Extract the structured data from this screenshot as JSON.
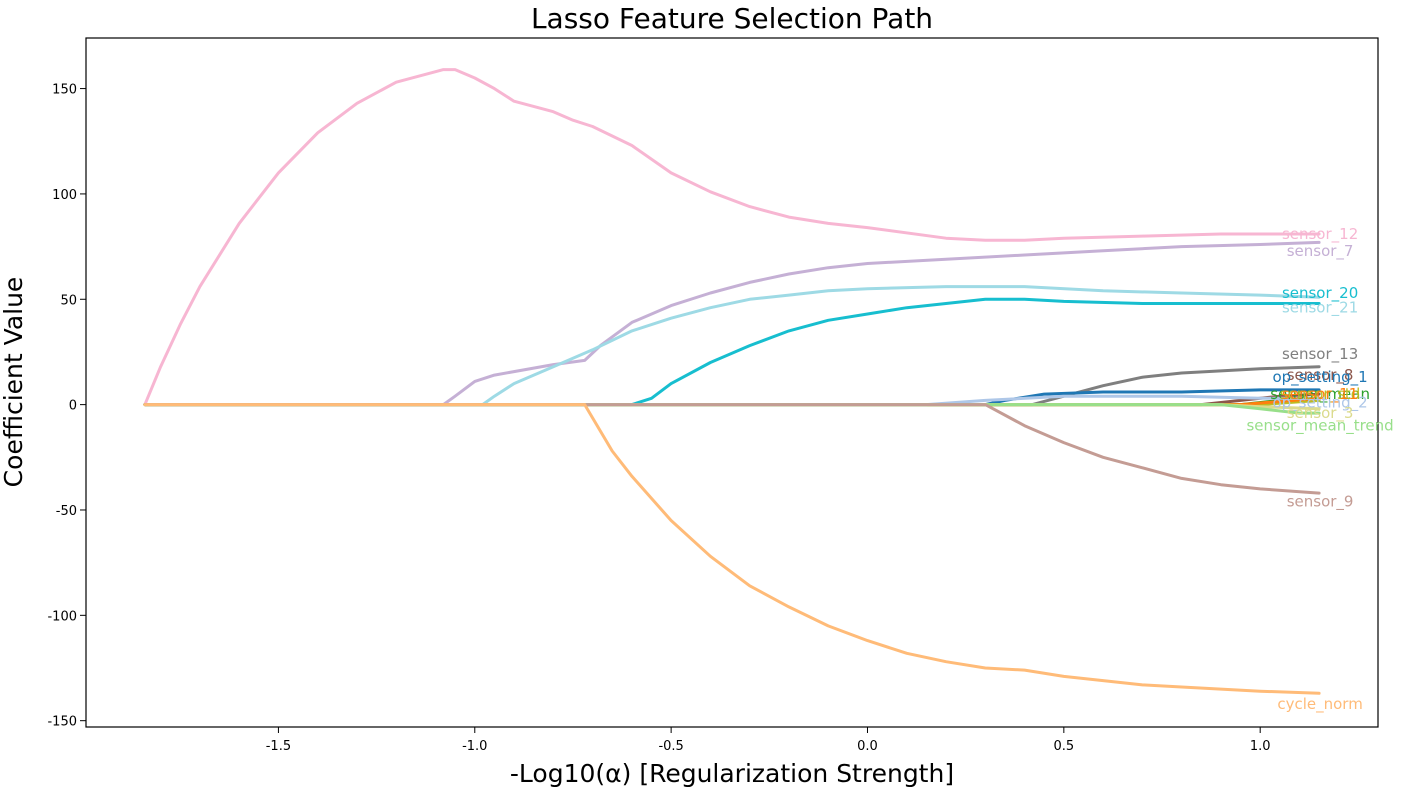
{
  "chart_data": {
    "type": "line",
    "title": "Lasso Feature Selection Path",
    "xlabel": "-Log10(α) [Regularization Strength]",
    "ylabel": "Coefficient Value",
    "xlim": [
      -1.99,
      1.3
    ],
    "ylim": [
      -153,
      174
    ],
    "xticks": [
      -1.5,
      -1.0,
      -0.5,
      0.0,
      0.5,
      1.0
    ],
    "xtick_labels": [
      "-1.5",
      "-1.0",
      "-0.5",
      "0.0",
      "0.5",
      "1.0"
    ],
    "yticks": [
      -150,
      -100,
      -50,
      0,
      50,
      100,
      150
    ],
    "ytick_labels": [
      "-150",
      "-100",
      "-50",
      "0",
      "50",
      "100",
      "150"
    ],
    "grid": false,
    "legend": "none",
    "series": [
      {
        "name": "sensor_12",
        "color": "#f7b6d2",
        "label_at": 81,
        "points": [
          [
            -1.84,
            0
          ],
          [
            -1.8,
            18
          ],
          [
            -1.75,
            38
          ],
          [
            -1.7,
            56
          ],
          [
            -1.6,
            86
          ],
          [
            -1.5,
            110
          ],
          [
            -1.4,
            129
          ],
          [
            -1.3,
            143
          ],
          [
            -1.2,
            153
          ],
          [
            -1.1,
            158
          ],
          [
            -1.08,
            159
          ],
          [
            -1.05,
            159
          ],
          [
            -1.0,
            155
          ],
          [
            -0.95,
            150
          ],
          [
            -0.9,
            144
          ],
          [
            -0.8,
            139
          ],
          [
            -0.75,
            135
          ],
          [
            -0.7,
            132
          ],
          [
            -0.6,
            123
          ],
          [
            -0.5,
            110
          ],
          [
            -0.4,
            101
          ],
          [
            -0.3,
            94
          ],
          [
            -0.2,
            89
          ],
          [
            -0.1,
            86
          ],
          [
            0.0,
            84
          ],
          [
            0.2,
            79
          ],
          [
            0.3,
            78
          ],
          [
            0.4,
            78
          ],
          [
            0.5,
            79
          ],
          [
            0.7,
            80
          ],
          [
            0.9,
            81
          ],
          [
            1.1,
            81
          ],
          [
            1.15,
            81
          ]
        ]
      },
      {
        "name": "sensor_7",
        "color": "#c5b0d5",
        "label_at": 73,
        "points": [
          [
            -1.84,
            0
          ],
          [
            -1.08,
            0
          ],
          [
            -1.05,
            4
          ],
          [
            -1.0,
            11
          ],
          [
            -0.95,
            14
          ],
          [
            -0.8,
            19
          ],
          [
            -0.72,
            21
          ],
          [
            -0.68,
            28
          ],
          [
            -0.6,
            39
          ],
          [
            -0.5,
            47
          ],
          [
            -0.4,
            53
          ],
          [
            -0.3,
            58
          ],
          [
            -0.2,
            62
          ],
          [
            -0.1,
            65
          ],
          [
            0.0,
            67
          ],
          [
            0.2,
            69
          ],
          [
            0.4,
            71
          ],
          [
            0.6,
            73
          ],
          [
            0.8,
            75
          ],
          [
            1.0,
            76
          ],
          [
            1.15,
            77
          ]
        ]
      },
      {
        "name": "sensor_20",
        "color": "#17becf",
        "label_at": 53,
        "points": [
          [
            -1.84,
            0
          ],
          [
            -0.6,
            0
          ],
          [
            -0.55,
            3
          ],
          [
            -0.5,
            10
          ],
          [
            -0.4,
            20
          ],
          [
            -0.3,
            28
          ],
          [
            -0.2,
            35
          ],
          [
            -0.1,
            40
          ],
          [
            0.0,
            43
          ],
          [
            0.1,
            46
          ],
          [
            0.2,
            48
          ],
          [
            0.3,
            50
          ],
          [
            0.4,
            50
          ],
          [
            0.5,
            49
          ],
          [
            0.7,
            48
          ],
          [
            0.9,
            48
          ],
          [
            1.15,
            48
          ]
        ]
      },
      {
        "name": "sensor_21",
        "color": "#9edae5",
        "label_at": 46,
        "points": [
          [
            -1.84,
            0
          ],
          [
            -0.98,
            0
          ],
          [
            -0.95,
            4
          ],
          [
            -0.9,
            10
          ],
          [
            -0.8,
            18
          ],
          [
            -0.7,
            26
          ],
          [
            -0.6,
            35
          ],
          [
            -0.5,
            41
          ],
          [
            -0.4,
            46
          ],
          [
            -0.3,
            50
          ],
          [
            -0.2,
            52
          ],
          [
            -0.1,
            54
          ],
          [
            0.0,
            55
          ],
          [
            0.2,
            56
          ],
          [
            0.3,
            56
          ],
          [
            0.4,
            56
          ],
          [
            0.6,
            54
          ],
          [
            0.8,
            53
          ],
          [
            1.0,
            52
          ],
          [
            1.15,
            51
          ]
        ]
      },
      {
        "name": "sensor_13",
        "color": "#7f7f7f",
        "label_at": 24,
        "points": [
          [
            -1.84,
            0
          ],
          [
            0.42,
            0
          ],
          [
            0.5,
            4
          ],
          [
            0.6,
            9
          ],
          [
            0.7,
            13
          ],
          [
            0.8,
            15
          ],
          [
            1.0,
            17
          ],
          [
            1.15,
            18
          ]
        ]
      },
      {
        "name": "sensor_8",
        "color": "#8c564b",
        "label_at": 14,
        "points": [
          [
            -1.84,
            0
          ],
          [
            0.85,
            0
          ],
          [
            0.95,
            2
          ],
          [
            1.05,
            4
          ],
          [
            1.15,
            5
          ]
        ]
      },
      {
        "name": "op_setting_1",
        "color": "#1f77b4",
        "label_at": 13,
        "points": [
          [
            -1.84,
            0
          ],
          [
            0.3,
            0
          ],
          [
            0.35,
            2
          ],
          [
            0.45,
            5
          ],
          [
            0.6,
            6
          ],
          [
            0.8,
            6
          ],
          [
            1.0,
            7
          ],
          [
            1.15,
            7
          ]
        ]
      },
      {
        "name": "sensor_mean",
        "color": "#2ca02c",
        "label_at": 5,
        "points": [
          [
            -1.84,
            0
          ],
          [
            0.95,
            0
          ],
          [
            1.05,
            2
          ],
          [
            1.15,
            3
          ]
        ]
      },
      {
        "name": "sensor_std",
        "color": "#bcbd22",
        "label_at": 5,
        "points": [
          [
            -1.84,
            0
          ],
          [
            1.0,
            0
          ],
          [
            1.15,
            2
          ]
        ]
      },
      {
        "name": "sensor_11",
        "color": "#ff7f0e",
        "label_at": 5,
        "points": [
          [
            -1.84,
            0
          ],
          [
            0.95,
            0
          ],
          [
            1.15,
            3
          ]
        ]
      },
      {
        "name": "op_setting_2",
        "color": "#aec7e8",
        "label_at": 1,
        "points": [
          [
            -1.84,
            0
          ],
          [
            0.15,
            0
          ],
          [
            0.3,
            2
          ],
          [
            0.5,
            4
          ],
          [
            0.8,
            4
          ],
          [
            1.0,
            3
          ],
          [
            1.15,
            3
          ]
        ]
      },
      {
        "name": "sensor_3",
        "color": "#dbdb8d",
        "label_at": -4,
        "points": [
          [
            -1.84,
            0
          ],
          [
            0.9,
            0
          ],
          [
            1.0,
            -1
          ],
          [
            1.15,
            -2
          ]
        ]
      },
      {
        "name": "sensor_mean_trend",
        "color": "#98df8a",
        "label_at": -10,
        "points": [
          [
            -1.84,
            0
          ],
          [
            0.9,
            0
          ],
          [
            1.0,
            -2
          ],
          [
            1.1,
            -4
          ],
          [
            1.15,
            -4
          ]
        ]
      },
      {
        "name": "sensor_9",
        "color": "#c49c94",
        "label_at": -46,
        "points": [
          [
            -1.84,
            0
          ],
          [
            0.3,
            0
          ],
          [
            0.4,
            -10
          ],
          [
            0.5,
            -18
          ],
          [
            0.6,
            -25
          ],
          [
            0.7,
            -30
          ],
          [
            0.8,
            -35
          ],
          [
            0.9,
            -38
          ],
          [
            1.0,
            -40
          ],
          [
            1.15,
            -42
          ]
        ]
      },
      {
        "name": "cycle_norm",
        "color": "#ffbb78",
        "label_at": -142,
        "points": [
          [
            -1.84,
            0
          ],
          [
            -0.72,
            0
          ],
          [
            -0.65,
            -22
          ],
          [
            -0.6,
            -34
          ],
          [
            -0.5,
            -55
          ],
          [
            -0.4,
            -72
          ],
          [
            -0.3,
            -86
          ],
          [
            -0.2,
            -96
          ],
          [
            -0.1,
            -105
          ],
          [
            0.0,
            -112
          ],
          [
            0.1,
            -118
          ],
          [
            0.2,
            -122
          ],
          [
            0.3,
            -125
          ],
          [
            0.4,
            -126
          ],
          [
            0.5,
            -129
          ],
          [
            0.6,
            -131
          ],
          [
            0.7,
            -133
          ],
          [
            0.8,
            -134
          ],
          [
            0.9,
            -135
          ],
          [
            1.0,
            -136
          ],
          [
            1.15,
            -137
          ]
        ]
      }
    ]
  }
}
